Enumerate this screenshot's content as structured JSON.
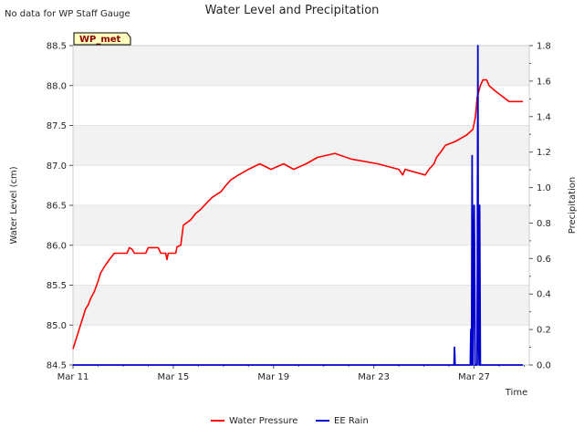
{
  "chart_data": {
    "type": "line",
    "title": "Water Level and Precipitation",
    "note": "No data for WP Staff Gauge",
    "site_tag": "WP_met",
    "xlabel": "Time",
    "ylabel_left": "Water Level (cm)",
    "ylabel_right": "Precipitation",
    "x_start": "Mar 11",
    "x_range_days": [
      0,
      18.2
    ],
    "x_ticks": [
      {
        "label": "Mar 11",
        "day": 0
      },
      {
        "label": "Mar 15",
        "day": 4
      },
      {
        "label": "Mar 19",
        "day": 8
      },
      {
        "label": "Mar 23",
        "day": 12
      },
      {
        "label": "Mar 27",
        "day": 16
      }
    ],
    "ylim_left": [
      84.5,
      88.5
    ],
    "yticks_left": [
      "84.5",
      "85.0",
      "85.5",
      "86.0",
      "86.5",
      "87.0",
      "87.5",
      "88.0",
      "88.5"
    ],
    "ylim_right": [
      0.0,
      1.8
    ],
    "yticks_right": [
      "0.0",
      "0.2",
      "0.4",
      "0.6",
      "0.8",
      "1.0",
      "1.2",
      "1.4",
      "1.6",
      "1.8"
    ],
    "legend": [
      {
        "name": "Water Pressure",
        "color": "#ff0000"
      },
      {
        "name": "EE Rain",
        "color": "#0000cc"
      }
    ],
    "series": [
      {
        "name": "Water Pressure",
        "axis": "left",
        "color": "#ff0000",
        "points": [
          [
            0.0,
            84.7
          ],
          [
            0.1,
            84.8
          ],
          [
            0.2,
            84.9
          ],
          [
            0.3,
            85.0
          ],
          [
            0.4,
            85.1
          ],
          [
            0.5,
            85.2
          ],
          [
            0.6,
            85.25
          ],
          [
            0.7,
            85.33
          ],
          [
            0.85,
            85.42
          ],
          [
            1.0,
            85.55
          ],
          [
            1.1,
            85.65
          ],
          [
            1.25,
            85.73
          ],
          [
            1.45,
            85.82
          ],
          [
            1.65,
            85.9
          ],
          [
            2.15,
            85.9
          ],
          [
            2.25,
            85.97
          ],
          [
            2.35,
            85.95
          ],
          [
            2.45,
            85.9
          ],
          [
            2.9,
            85.9
          ],
          [
            3.0,
            85.97
          ],
          [
            3.4,
            85.97
          ],
          [
            3.5,
            85.9
          ],
          [
            3.7,
            85.9
          ],
          [
            3.75,
            85.82
          ],
          [
            3.8,
            85.9
          ],
          [
            4.1,
            85.9
          ],
          [
            4.15,
            85.98
          ],
          [
            4.3,
            86.0
          ],
          [
            4.4,
            86.25
          ],
          [
            4.7,
            86.32
          ],
          [
            4.9,
            86.4
          ],
          [
            5.1,
            86.45
          ],
          [
            5.3,
            86.52
          ],
          [
            5.55,
            86.6
          ],
          [
            5.9,
            86.67
          ],
          [
            6.1,
            86.75
          ],
          [
            6.3,
            86.82
          ],
          [
            6.6,
            86.88
          ],
          [
            7.0,
            86.95
          ],
          [
            7.45,
            87.02
          ],
          [
            7.9,
            86.95
          ],
          [
            8.4,
            87.02
          ],
          [
            8.8,
            86.95
          ],
          [
            9.3,
            87.02
          ],
          [
            9.75,
            87.1
          ],
          [
            10.45,
            87.15
          ],
          [
            11.1,
            87.08
          ],
          [
            12.15,
            87.02
          ],
          [
            13.0,
            86.95
          ],
          [
            13.15,
            86.88
          ],
          [
            13.25,
            86.95
          ],
          [
            14.05,
            86.88
          ],
          [
            14.2,
            86.95
          ],
          [
            14.4,
            87.02
          ],
          [
            14.5,
            87.1
          ],
          [
            14.7,
            87.18
          ],
          [
            14.85,
            87.25
          ],
          [
            15.25,
            87.3
          ],
          [
            15.7,
            87.38
          ],
          [
            15.95,
            87.45
          ],
          [
            16.05,
            87.6
          ],
          [
            16.12,
            87.85
          ],
          [
            16.25,
            88.0
          ],
          [
            16.35,
            88.07
          ],
          [
            16.5,
            88.07
          ],
          [
            16.6,
            88.0
          ],
          [
            16.85,
            87.93
          ],
          [
            17.1,
            87.87
          ],
          [
            17.4,
            87.8
          ],
          [
            17.95,
            87.8
          ]
        ]
      },
      {
        "name": "EE Rain",
        "axis": "right",
        "color": "#0000cc",
        "points": [
          [
            0.0,
            0.0
          ],
          [
            15.2,
            0.0
          ],
          [
            15.22,
            0.1
          ],
          [
            15.24,
            0.0
          ],
          [
            15.85,
            0.0
          ],
          [
            15.87,
            0.2
          ],
          [
            15.9,
            0.0
          ],
          [
            15.92,
            1.18
          ],
          [
            15.95,
            0.0
          ],
          [
            16.0,
            0.9
          ],
          [
            16.02,
            0.6
          ],
          [
            16.04,
            0.0
          ],
          [
            16.12,
            0.0
          ],
          [
            16.15,
            1.8
          ],
          [
            16.17,
            0.2
          ],
          [
            16.2,
            0.0
          ],
          [
            16.22,
            0.9
          ],
          [
            16.25,
            0.0
          ],
          [
            17.95,
            0.0
          ]
        ]
      }
    ]
  }
}
